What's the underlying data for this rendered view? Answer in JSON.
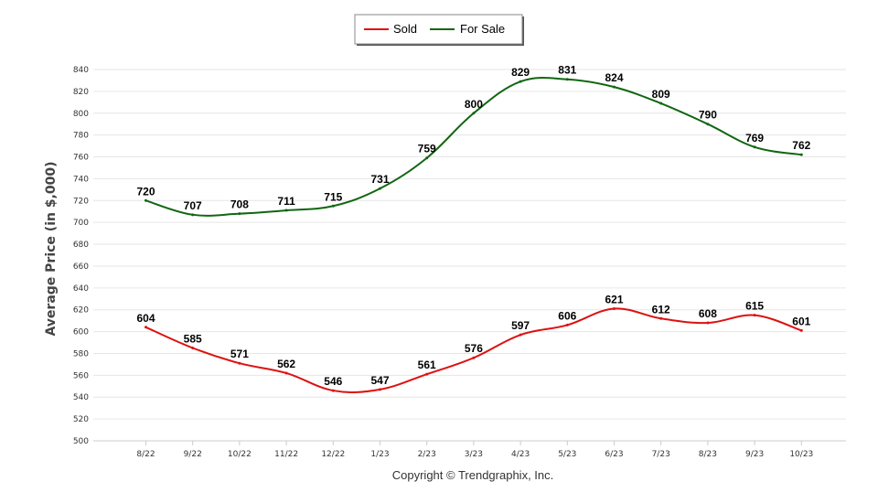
{
  "chart_data": {
    "type": "line",
    "categories": [
      "8/22",
      "9/22",
      "10/22",
      "11/22",
      "12/22",
      "1/23",
      "2/23",
      "3/23",
      "4/23",
      "5/23",
      "6/23",
      "7/23",
      "8/23",
      "9/23",
      "10/23"
    ],
    "series": [
      {
        "name": "Sold",
        "color": "#dd1111",
        "values": [
          604,
          585,
          571,
          562,
          546,
          547,
          561,
          576,
          597,
          606,
          621,
          612,
          608,
          615,
          601
        ]
      },
      {
        "name": "For Sale",
        "color": "#116611",
        "values": [
          720,
          707,
          708,
          711,
          715,
          731,
          759,
          800,
          829,
          831,
          824,
          809,
          790,
          769,
          762
        ]
      }
    ],
    "ylabel": "Average Price (in $,000)",
    "xlabel": "",
    "ylim": [
      500,
      840
    ],
    "ytick_step": 20,
    "grid": true,
    "legend_position": "top-center",
    "footer": "Copyright © Trendgraphix, Inc."
  }
}
